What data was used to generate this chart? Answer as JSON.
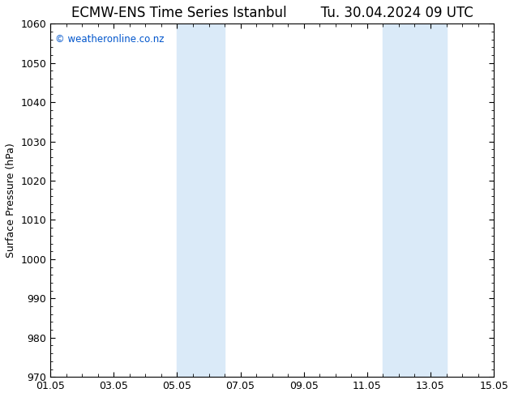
{
  "title": "ECMW-ENS Time Series Istanbul",
  "title2": "Tu. 30.04.2024 09 UTC",
  "ylabel": "Surface Pressure (hPa)",
  "xlim_start": 0,
  "xlim_end": 14,
  "ylim": [
    970,
    1060
  ],
  "yticks": [
    970,
    980,
    990,
    1000,
    1010,
    1020,
    1030,
    1040,
    1050,
    1060
  ],
  "xtick_labels": [
    "01.05",
    "03.05",
    "05.05",
    "07.05",
    "09.05",
    "11.05",
    "13.05",
    "15.05"
  ],
  "xtick_positions": [
    0,
    2,
    4,
    6,
    8,
    10,
    12,
    14
  ],
  "shaded_regions": [
    {
      "x_start": 4.0,
      "x_end": 5.5
    },
    {
      "x_start": 10.5,
      "x_end": 12.5
    }
  ],
  "shaded_color": "#daeaf8",
  "watermark": "© weatheronline.co.nz",
  "watermark_color": "#0055cc",
  "background_color": "#ffffff",
  "plot_bg_color": "#ffffff",
  "title_fontsize": 12,
  "label_fontsize": 9,
  "tick_fontsize": 9
}
